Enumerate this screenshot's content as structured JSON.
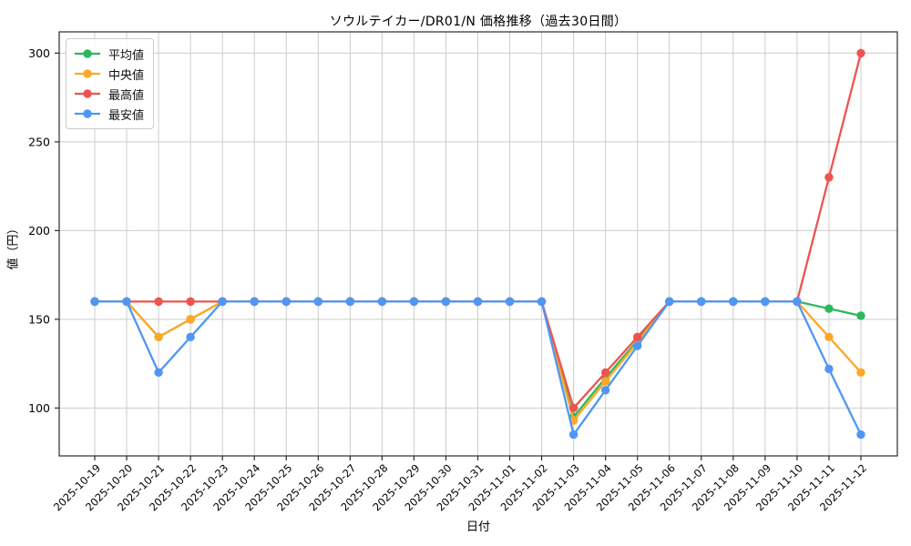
{
  "figure": {
    "title": "ソウルテイカー/DR01/N 価格推移（過去30日間）",
    "xlabel": "日付",
    "ylabel": "値（円）"
  },
  "chart_data": {
    "type": "line",
    "title": "ソウルテイカー/DR01/N 価格推移（過去30日間）",
    "xlabel": "日付",
    "ylabel": "値（円）",
    "categories": [
      "2025-10-19",
      "2025-10-20",
      "2025-10-21",
      "2025-10-22",
      "2025-10-23",
      "2025-10-24",
      "2025-10-25",
      "2025-10-26",
      "2025-10-27",
      "2025-10-28",
      "2025-10-29",
      "2025-10-30",
      "2025-10-31",
      "2025-11-01",
      "2025-11-02",
      "2025-11-03",
      "2025-11-04",
      "2025-11-05",
      "2025-11-06",
      "2025-11-07",
      "2025-11-08",
      "2025-11-09",
      "2025-11-10",
      "2025-11-11",
      "2025-11-12"
    ],
    "series": [
      {
        "name": "平均値",
        "color": "#2eb85c",
        "values": [
          160,
          160,
          140,
          150,
          160,
          160,
          160,
          160,
          160,
          160,
          160,
          160,
          160,
          160,
          160,
          95,
          117,
          138,
          160,
          160,
          160,
          160,
          160,
          156,
          152
        ]
      },
      {
        "name": "中央値",
        "color": "#ffa726",
        "values": [
          160,
          160,
          140,
          150,
          160,
          160,
          160,
          160,
          160,
          160,
          160,
          160,
          160,
          160,
          160,
          93,
          115,
          137,
          160,
          160,
          160,
          160,
          160,
          140,
          120
        ]
      },
      {
        "name": "最高値",
        "color": "#ef5350",
        "values": [
          160,
          160,
          160,
          160,
          160,
          160,
          160,
          160,
          160,
          160,
          160,
          160,
          160,
          160,
          160,
          100,
          120,
          140,
          160,
          160,
          160,
          160,
          160,
          230,
          300
        ]
      },
      {
        "name": "最安値",
        "color": "#4f97f4",
        "values": [
          160,
          160,
          120,
          140,
          160,
          160,
          160,
          160,
          160,
          160,
          160,
          160,
          160,
          160,
          160,
          85,
          110,
          135,
          160,
          160,
          160,
          160,
          160,
          122,
          85
        ]
      }
    ],
    "yticks": [
      100,
      150,
      200,
      250,
      300
    ],
    "ylim": [
      73,
      312
    ],
    "grid": true,
    "legend_position": "upper left",
    "style": {
      "grid_color": "#cccccc",
      "axis_color": "#2b2b2b",
      "background": "#ffffff",
      "tick_text_color": "#000000",
      "line_width": 2.3,
      "marker_radius": 4.7
    }
  }
}
